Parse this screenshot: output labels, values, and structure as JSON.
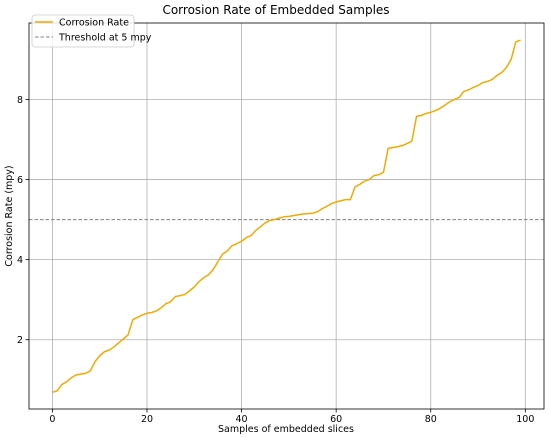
{
  "chart_data": {
    "type": "line",
    "title": "Corrosion Rate of Embedded Samples",
    "xlabel": "Samples of embedded slices",
    "ylabel": "Corrosion Rate (mpy)",
    "xlim": [
      -4.95,
      103.95
    ],
    "ylim": [
      0.27,
      9.91
    ],
    "xticks": [
      0,
      20,
      40,
      60,
      80,
      100
    ],
    "xtick_labels": [
      "0",
      "20",
      "40",
      "60",
      "80",
      "100"
    ],
    "yticks": [
      2,
      4,
      6,
      8
    ],
    "ytick_labels": [
      "2",
      "4",
      "6",
      "8"
    ],
    "grid": true,
    "legend": "upper-left",
    "series": [
      {
        "name": "Corrosion Rate",
        "color": "#f5a800",
        "x": [
          0,
          1,
          2,
          3,
          4,
          5,
          6,
          7,
          8,
          9,
          10,
          11,
          12,
          13,
          14,
          15,
          16,
          17,
          18,
          19,
          20,
          21,
          22,
          23,
          24,
          25,
          26,
          27,
          28,
          29,
          30,
          31,
          32,
          33,
          34,
          35,
          36,
          37,
          38,
          39,
          40,
          41,
          42,
          43,
          44,
          45,
          46,
          47,
          48,
          49,
          50,
          51,
          52,
          53,
          54,
          55,
          56,
          57,
          58,
          59,
          60,
          61,
          62,
          63,
          64,
          65,
          66,
          67,
          68,
          69,
          70,
          71,
          72,
          73,
          74,
          75,
          76,
          77,
          78,
          79,
          80,
          81,
          82,
          83,
          84,
          85,
          86,
          87,
          88,
          89,
          90,
          91,
          92,
          93,
          94,
          95,
          96,
          97,
          98,
          99
        ],
        "y": [
          0.69,
          0.72,
          0.88,
          0.95,
          1.05,
          1.12,
          1.14,
          1.16,
          1.22,
          1.45,
          1.6,
          1.7,
          1.74,
          1.82,
          1.92,
          2.02,
          2.12,
          2.5,
          2.56,
          2.62,
          2.66,
          2.68,
          2.72,
          2.8,
          2.9,
          2.95,
          3.08,
          3.1,
          3.13,
          3.22,
          3.32,
          3.45,
          3.55,
          3.62,
          3.75,
          3.95,
          4.14,
          4.22,
          4.35,
          4.4,
          4.46,
          4.55,
          4.6,
          4.73,
          4.82,
          4.92,
          4.98,
          5.0,
          5.04,
          5.07,
          5.08,
          5.1,
          5.12,
          5.14,
          5.15,
          5.16,
          5.19,
          5.27,
          5.33,
          5.4,
          5.44,
          5.47,
          5.5,
          5.5,
          5.82,
          5.88,
          5.96,
          6.0,
          6.1,
          6.12,
          6.18,
          6.78,
          6.8,
          6.82,
          6.85,
          6.9,
          6.96,
          7.58,
          7.6,
          7.65,
          7.68,
          7.72,
          7.78,
          7.86,
          7.94,
          8.0,
          8.05,
          8.2,
          8.24,
          8.3,
          8.35,
          8.42,
          8.45,
          8.5,
          8.6,
          8.67,
          8.8,
          9.0,
          9.44,
          9.48
        ]
      },
      {
        "name": "Threshold at 5 mpy",
        "color": "#808080",
        "dash": "dashed",
        "y_constant": 5
      }
    ]
  }
}
